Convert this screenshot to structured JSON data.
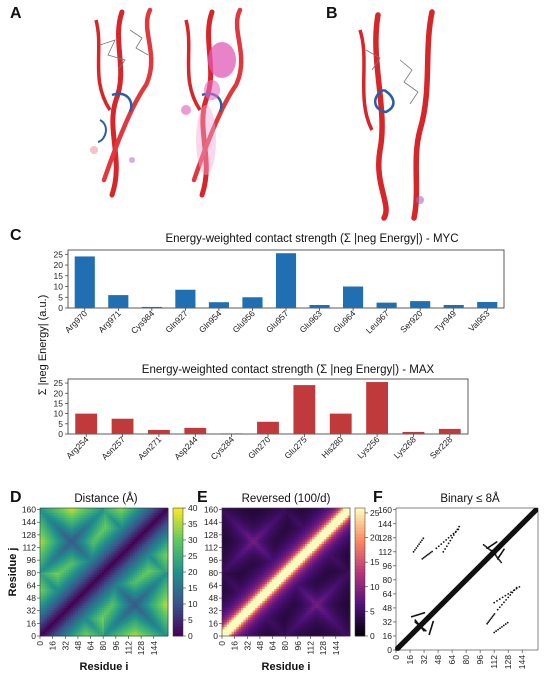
{
  "panels": {
    "A": {
      "label": "A"
    },
    "B": {
      "label": "B"
    },
    "C": {
      "label": "C"
    },
    "D": {
      "label": "D"
    },
    "E": {
      "label": "E"
    },
    "F": {
      "label": "F"
    }
  },
  "shared_ylabel": "Σ |neg Energy| (a.u.)",
  "colors": {
    "myc": "#1f6fb2",
    "max": "#c0393b",
    "helix": "#d7262a"
  },
  "chart_data": [
    {
      "type": "bar",
      "title": "Energy-weighted contact strength (Σ |neg Energy|) - MYC",
      "categories": [
        "Arg970",
        "Arg971",
        "Cys984",
        "Gln927",
        "Gln954",
        "Glu956",
        "Glu957",
        "Glu963",
        "Glu964",
        "Leu967",
        "Ser920",
        "Tyr949",
        "Val953"
      ],
      "values": [
        24,
        6,
        0.5,
        8.5,
        2.7,
        5,
        25.5,
        1.4,
        10,
        2.5,
        3.2,
        1.4,
        2.8
      ],
      "yticks": [
        0,
        5,
        10,
        15,
        20,
        25
      ],
      "ylim": [
        0,
        27
      ],
      "color": "#1f6fb2"
    },
    {
      "type": "bar",
      "title": "Energy-weighted contact strength (Σ |neg Energy|) - MAX",
      "categories": [
        "Arg254",
        "Asn257",
        "Asn271",
        "Asp244",
        "Cys284",
        "Gln270",
        "Glu275",
        "His280",
        "Lys256",
        "Lys268",
        "Ser228"
      ],
      "values": [
        10,
        7.5,
        2,
        3,
        0.3,
        6,
        24,
        10,
        25.5,
        1,
        2.5
      ],
      "yticks": [
        0,
        5,
        10,
        15,
        20,
        25
      ],
      "ylim": [
        0,
        27
      ],
      "color": "#c0393b"
    },
    {
      "type": "heatmap",
      "title": "Distance (Å)",
      "xlabel": "Residue i",
      "ylabel": "Residue j",
      "xticks": [
        0,
        16,
        32,
        48,
        64,
        80,
        96,
        112,
        128,
        144
      ],
      "yticks": [
        0,
        16,
        32,
        48,
        64,
        80,
        96,
        112,
        128,
        144,
        160
      ],
      "colorbar_ticks": [
        0,
        5,
        10,
        15,
        20,
        25,
        30,
        35,
        40
      ],
      "vmin": 0,
      "vmax": 40,
      "colormap": "viridis"
    },
    {
      "type": "heatmap",
      "title": "Reversed (100/d)",
      "xlabel": "Residue i",
      "xticks": [
        0,
        16,
        32,
        48,
        64,
        80,
        96,
        112,
        128,
        144
      ],
      "yticks": [
        0,
        16,
        32,
        48,
        64,
        80,
        96,
        112,
        128,
        144,
        160
      ],
      "colorbar_ticks": [
        0,
        5,
        10,
        15,
        20,
        25
      ],
      "vmin": 0,
      "vmax": 26,
      "colormap": "magma"
    },
    {
      "type": "scatter",
      "title": "Binary ≤ 8Å",
      "xlabel": "Residue i",
      "xticks": [
        0,
        16,
        32,
        48,
        64,
        80,
        96,
        112,
        128,
        144
      ],
      "yticks": [
        0,
        16,
        32,
        48,
        64,
        80,
        96,
        112,
        128,
        144,
        160
      ],
      "xlim": [
        0,
        162
      ],
      "ylim": [
        0,
        162
      ]
    }
  ]
}
